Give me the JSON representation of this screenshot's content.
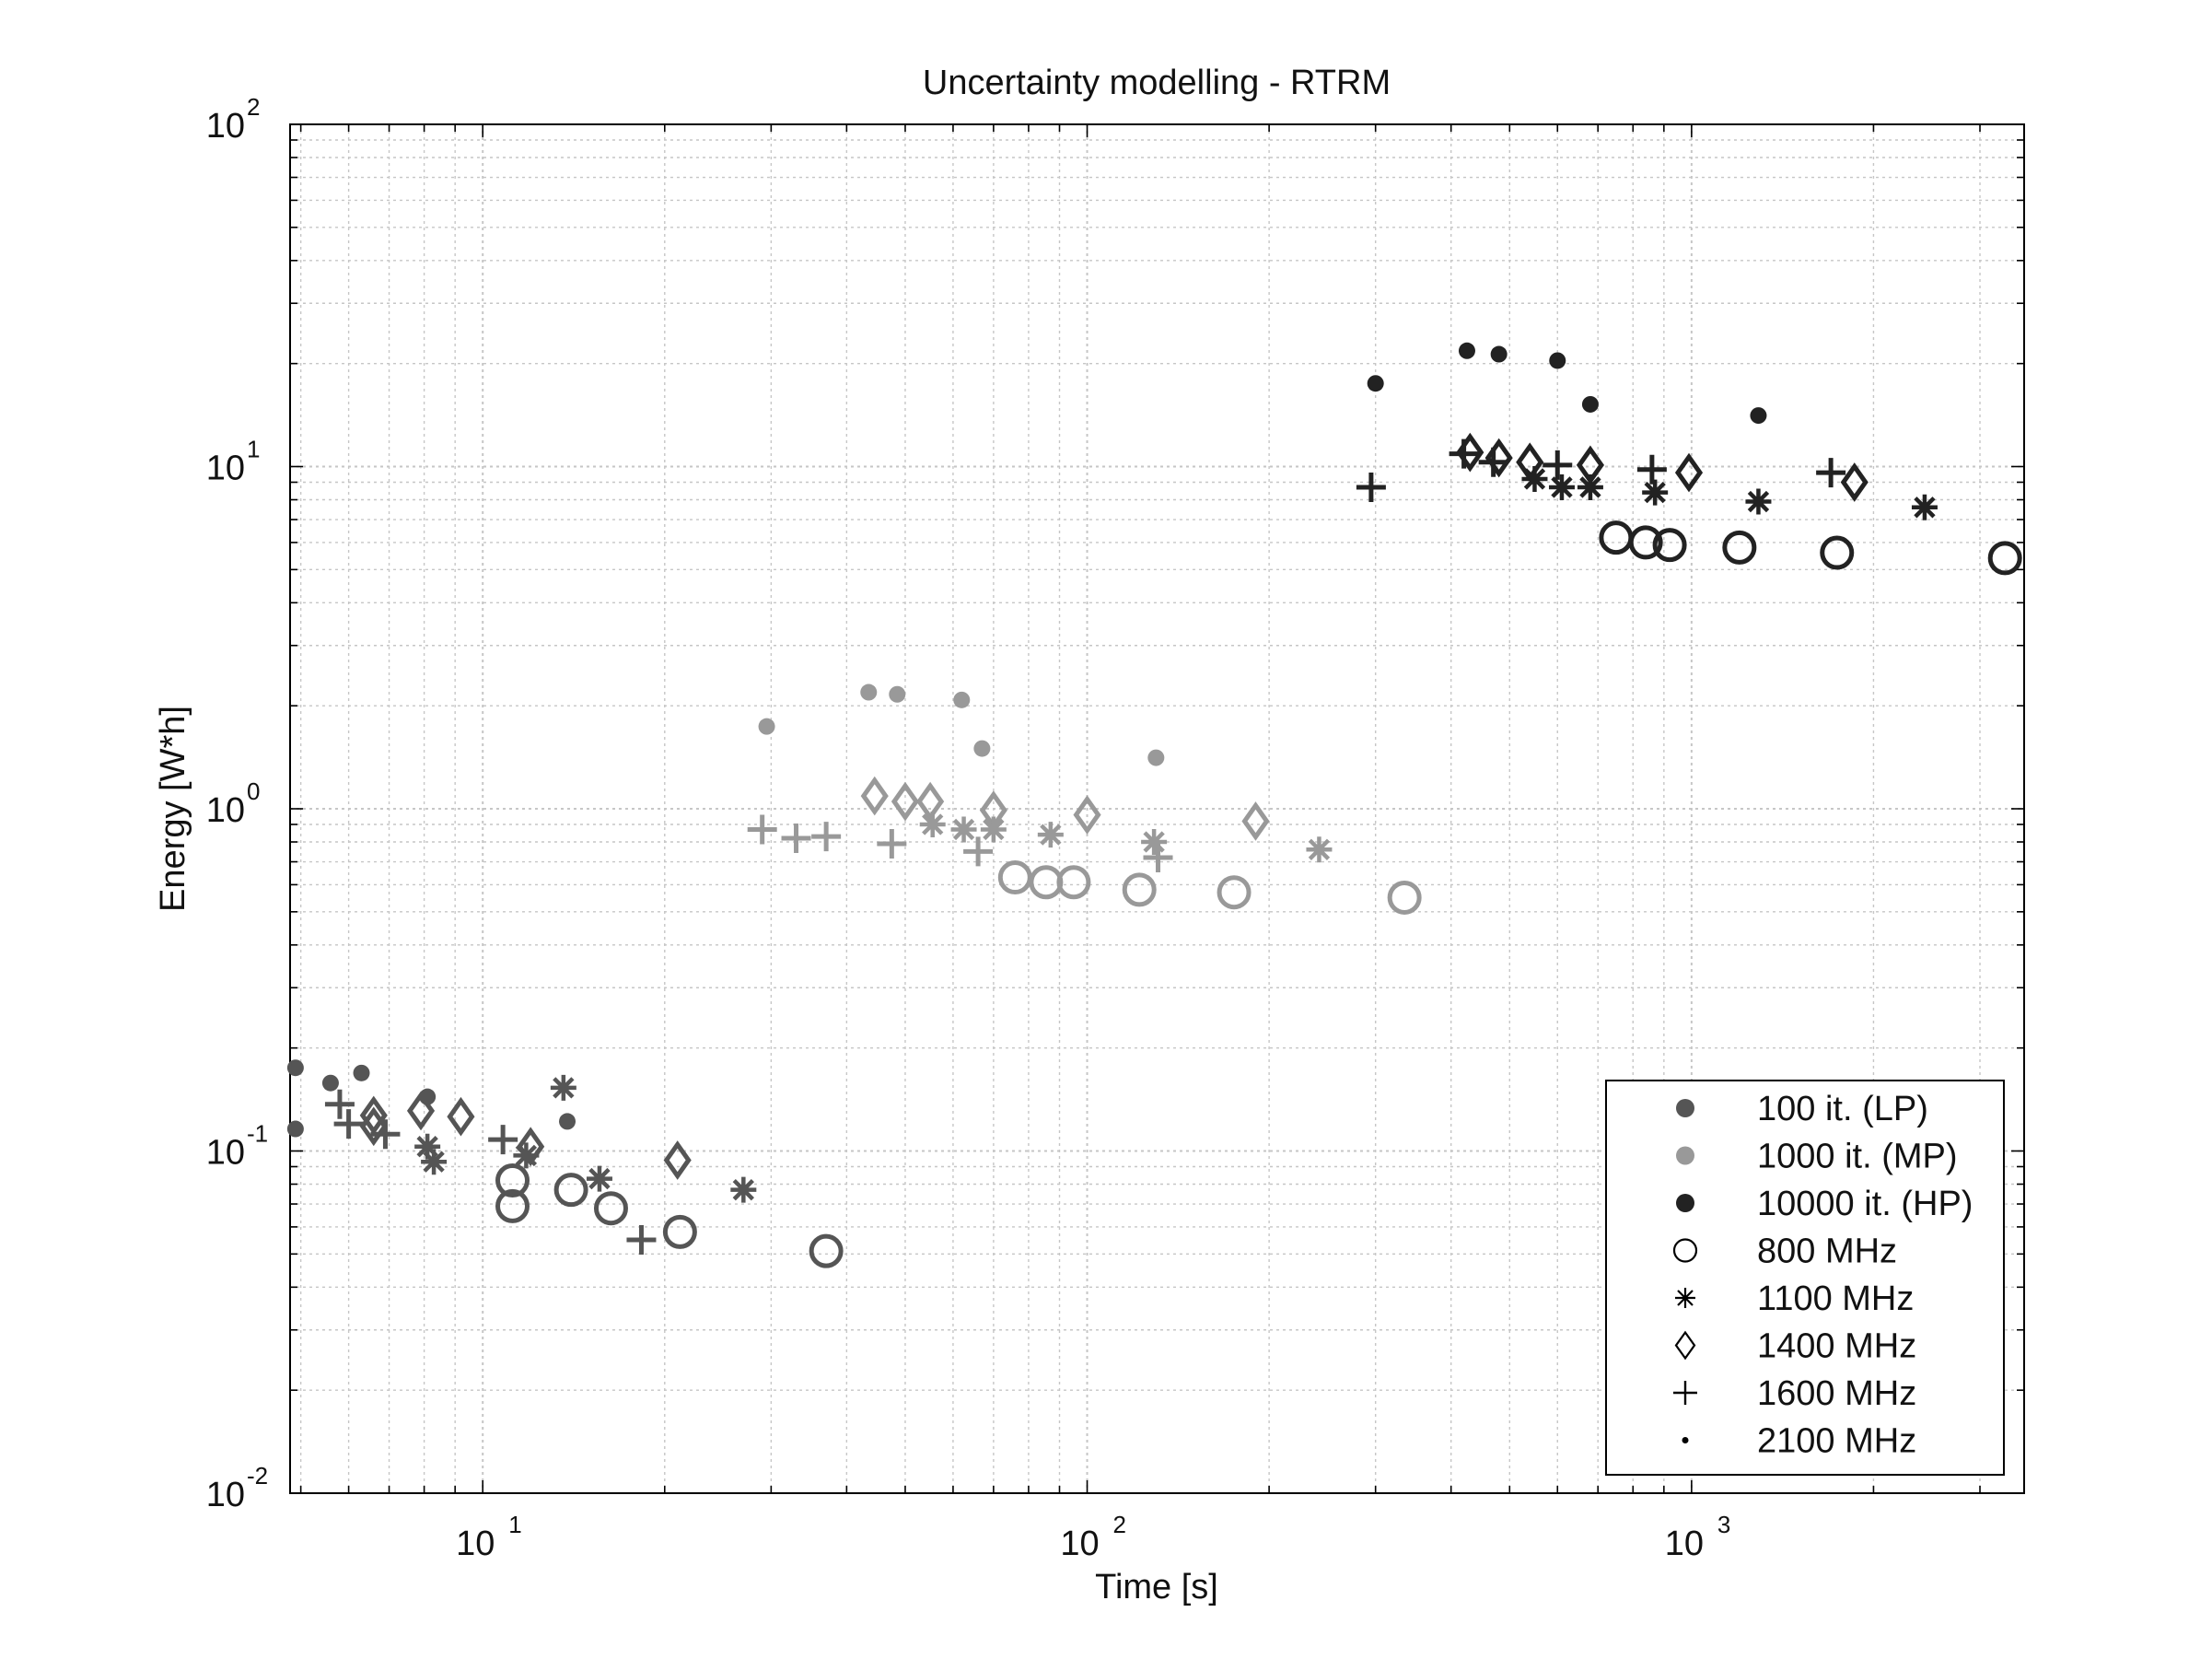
{
  "chart_data": {
    "type": "scatter",
    "title": "Uncertainty modelling - RTRM",
    "xlabel": "Time [s]",
    "ylabel": "Energy [W*h]",
    "xscale": "log",
    "yscale": "log",
    "xlim": [
      4.8,
      3550
    ],
    "ylim": [
      0.01,
      100
    ],
    "grid": true,
    "legend_position": "bottom-right",
    "x_ticks": [
      {
        "value": 10,
        "base": "10",
        "exp": "1"
      },
      {
        "value": 100,
        "base": "10",
        "exp": "2"
      },
      {
        "value": 1000,
        "base": "10",
        "exp": "3"
      }
    ],
    "y_ticks": [
      {
        "value": 0.01,
        "base": "10",
        "exp": "-2"
      },
      {
        "value": 0.1,
        "base": "10",
        "exp": "-1"
      },
      {
        "value": 1,
        "base": "10",
        "exp": "0"
      },
      {
        "value": 10,
        "base": "10",
        "exp": "1"
      },
      {
        "value": 100,
        "base": "10",
        "exp": "2"
      }
    ],
    "colors": {
      "LP": "#555555",
      "MP": "#999999",
      "HP": "#222222"
    },
    "legend": [
      {
        "label": "100 it. (LP)",
        "marker": "filled-circle",
        "color": "#555555"
      },
      {
        "label": "1000 it. (MP)",
        "marker": "filled-circle",
        "color": "#999999"
      },
      {
        "label": "10000 it. (HP)",
        "marker": "filled-circle",
        "color": "#222222"
      },
      {
        "label": "800 MHz",
        "marker": "circle",
        "color": "#000000"
      },
      {
        "label": "1100 MHz",
        "marker": "asterisk",
        "color": "#000000"
      },
      {
        "label": "1400 MHz",
        "marker": "diamond",
        "color": "#000000"
      },
      {
        "label": "1600 MHz",
        "marker": "plus",
        "color": "#000000"
      },
      {
        "label": "2100 MHz",
        "marker": "dot",
        "color": "#000000"
      }
    ],
    "series": [
      {
        "name": "LP 2100 MHz",
        "group": "LP",
        "marker": "dot",
        "points": [
          [
            4.9,
            0.175
          ],
          [
            4.9,
            0.116
          ],
          [
            5.6,
            0.158
          ],
          [
            6.3,
            0.169
          ],
          [
            8.1,
            0.144
          ],
          [
            13.8,
            0.122
          ]
        ]
      },
      {
        "name": "LP 1600 MHz",
        "group": "LP",
        "marker": "plus",
        "points": [
          [
            5.8,
            0.137
          ],
          [
            6.0,
            0.12
          ],
          [
            6.9,
            0.112
          ],
          [
            10.8,
            0.108
          ],
          [
            18.3,
            0.055
          ]
        ]
      },
      {
        "name": "LP 1400 MHz",
        "group": "LP",
        "marker": "diamond",
        "points": [
          [
            6.6,
            0.127
          ],
          [
            6.6,
            0.118
          ],
          [
            7.9,
            0.131
          ],
          [
            9.2,
            0.126
          ],
          [
            12.0,
            0.103
          ],
          [
            21.0,
            0.094
          ]
        ]
      },
      {
        "name": "LP 1100 MHz",
        "group": "LP",
        "marker": "asterisk",
        "points": [
          [
            8.1,
            0.103
          ],
          [
            8.3,
            0.093
          ],
          [
            11.8,
            0.097
          ],
          [
            13.6,
            0.153
          ],
          [
            15.6,
            0.083
          ],
          [
            27.0,
            0.077
          ]
        ]
      },
      {
        "name": "LP 800 MHz",
        "group": "LP",
        "marker": "circle",
        "points": [
          [
            11.2,
            0.082
          ],
          [
            11.2,
            0.069
          ],
          [
            14.0,
            0.077
          ],
          [
            16.3,
            0.068
          ],
          [
            21.2,
            0.058
          ],
          [
            37.0,
            0.051
          ]
        ]
      },
      {
        "name": "MP 2100 MHz",
        "group": "MP",
        "marker": "dot",
        "points": [
          [
            29.5,
            1.74
          ],
          [
            43.5,
            2.19
          ],
          [
            48.5,
            2.16
          ],
          [
            62.0,
            2.08
          ],
          [
            67.0,
            1.5
          ],
          [
            130.0,
            1.41
          ]
        ]
      },
      {
        "name": "MP 1600 MHz",
        "group": "MP",
        "marker": "plus",
        "points": [
          [
            29.0,
            0.87
          ],
          [
            33.0,
            0.82
          ],
          [
            37.0,
            0.83
          ],
          [
            47.5,
            0.79
          ],
          [
            66.0,
            0.75
          ],
          [
            131.0,
            0.72
          ]
        ]
      },
      {
        "name": "MP 1400 MHz",
        "group": "MP",
        "marker": "diamond",
        "points": [
          [
            44.5,
            1.09
          ],
          [
            50.0,
            1.05
          ],
          [
            55.0,
            1.05
          ],
          [
            70.0,
            0.99
          ],
          [
            100.0,
            0.96
          ],
          [
            190.0,
            0.92
          ]
        ]
      },
      {
        "name": "MP 1100 MHz",
        "group": "MP",
        "marker": "asterisk",
        "points": [
          [
            55.5,
            0.9
          ],
          [
            62.5,
            0.87
          ],
          [
            70.0,
            0.87
          ],
          [
            87.0,
            0.84
          ],
          [
            129.0,
            0.8
          ],
          [
            242.0,
            0.76
          ]
        ]
      },
      {
        "name": "MP 800 MHz",
        "group": "MP",
        "marker": "circle",
        "points": [
          [
            76.0,
            0.63
          ],
          [
            85.5,
            0.61
          ],
          [
            95.0,
            0.61
          ],
          [
            122.0,
            0.58
          ],
          [
            175.0,
            0.57
          ],
          [
            335.0,
            0.55
          ]
        ]
      },
      {
        "name": "HP 2100 MHz",
        "group": "HP",
        "marker": "dot",
        "points": [
          [
            300.0,
            17.5
          ],
          [
            425.0,
            21.8
          ],
          [
            480.0,
            21.3
          ],
          [
            600.0,
            20.4
          ],
          [
            680.0,
            15.2
          ],
          [
            1290.0,
            14.1
          ]
        ]
      },
      {
        "name": "HP 1600 MHz",
        "group": "HP",
        "marker": "plus",
        "points": [
          [
            295.0,
            8.7
          ],
          [
            420.0,
            10.9
          ],
          [
            470.0,
            10.3
          ],
          [
            600.0,
            10.1
          ],
          [
            860.0,
            9.8
          ],
          [
            1700.0,
            9.6
          ]
        ]
      },
      {
        "name": "HP 1400 MHz",
        "group": "HP",
        "marker": "diamond",
        "points": [
          [
            430.0,
            11.0
          ],
          [
            480.0,
            10.6
          ],
          [
            540.0,
            10.3
          ],
          [
            680.0,
            10.1
          ],
          [
            990.0,
            9.6
          ],
          [
            1860.0,
            9.0
          ]
        ]
      },
      {
        "name": "HP 1100 MHz",
        "group": "HP",
        "marker": "asterisk",
        "points": [
          [
            550.0,
            9.2
          ],
          [
            610.0,
            8.7
          ],
          [
            680.0,
            8.7
          ],
          [
            870.0,
            8.4
          ],
          [
            1290.0,
            7.9
          ],
          [
            2430.0,
            7.6
          ]
        ]
      },
      {
        "name": "HP 800 MHz",
        "group": "HP",
        "marker": "circle",
        "points": [
          [
            750.0,
            6.2
          ],
          [
            840.0,
            6.0
          ],
          [
            920.0,
            5.9
          ],
          [
            1200.0,
            5.8
          ],
          [
            1740.0,
            5.6
          ],
          [
            3300.0,
            5.4
          ]
        ]
      }
    ]
  }
}
